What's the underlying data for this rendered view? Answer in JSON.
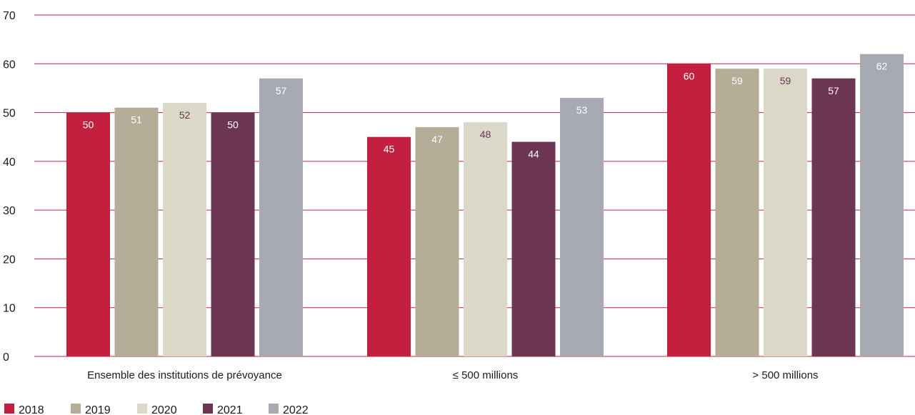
{
  "chart_data": {
    "type": "bar",
    "categories": [
      "Ensemble des institutions de prévoyance",
      "≤ 500 millions",
      "> 500 millions"
    ],
    "series": [
      {
        "name": "2018",
        "values": [
          50,
          45,
          60
        ],
        "color": "#c3203f",
        "label_color": "#ffffff"
      },
      {
        "name": "2019",
        "values": [
          51,
          47,
          59
        ],
        "color": "#b5ad97",
        "label_color": "#ffffff"
      },
      {
        "name": "2020",
        "values": [
          52,
          48,
          59
        ],
        "color": "#dcd8c8",
        "label_color": "#6b3553"
      },
      {
        "name": "2021",
        "values": [
          50,
          44,
          57
        ],
        "color": "#6b3553",
        "label_color": "#ffffff"
      },
      {
        "name": "2022",
        "values": [
          57,
          53,
          62
        ],
        "color": "#a7aab2",
        "label_color": "#ffffff"
      }
    ],
    "yticks": [
      "0",
      "10",
      "20",
      "30",
      "40",
      "50",
      "60",
      "70"
    ],
    "ylim": [
      0,
      70
    ],
    "grid": true,
    "grid_color": "#c3203f",
    "legend_position": "bottom-left"
  }
}
